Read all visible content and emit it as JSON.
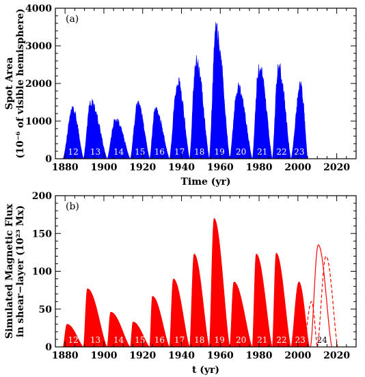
{
  "chart_data": [
    {
      "panel": "(a)",
      "type": "area",
      "xlabel": "Time (yr)",
      "ylabel": [
        "Spot Area",
        "(10⁻⁶ of visible hemisphere)"
      ],
      "xlim": [
        1875,
        2030
      ],
      "ylim": [
        0,
        4000
      ],
      "xticks": [
        1880,
        1900,
        1920,
        1940,
        1960,
        1980,
        2000,
        2020
      ],
      "yticks": [
        0,
        1000,
        2000,
        3000,
        4000
      ],
      "color": "#0000ff",
      "series": [
        {
          "values": [
            {
              "cycle": "12",
              "start": 1878.9,
              "max": 1883.9,
              "end": 1889.5,
              "peak": 1300
            },
            {
              "cycle": "13",
              "start": 1889.5,
              "max": 1893.2,
              "end": 1901.7,
              "peak": 1500
            },
            {
              "cycle": "14",
              "start": 1901.7,
              "max": 1906.0,
              "end": 1913.6,
              "peak": 1050
            },
            {
              "cycle": "15",
              "start": 1913.6,
              "max": 1917.5,
              "end": 1923.6,
              "peak": 1450
            },
            {
              "cycle": "16",
              "start": 1923.6,
              "max": 1926.5,
              "end": 1933.8,
              "peak": 1300
            },
            {
              "cycle": "17",
              "start": 1933.8,
              "max": 1938.0,
              "end": 1944.2,
              "peak": 2050
            },
            {
              "cycle": "18",
              "start": 1944.2,
              "max": 1947.5,
              "end": 1954.3,
              "peak": 2600
            },
            {
              "cycle": "19",
              "start": 1954.3,
              "max": 1957.9,
              "end": 1964.9,
              "peak": 3400
            },
            {
              "cycle": "20",
              "start": 1964.9,
              "max": 1969.0,
              "end": 1976.5,
              "peak": 1900
            },
            {
              "cycle": "21",
              "start": 1976.5,
              "max": 1980.0,
              "end": 1986.8,
              "peak": 2450
            },
            {
              "cycle": "22",
              "start": 1986.8,
              "max": 1990.0,
              "end": 1996.4,
              "peak": 2450
            },
            {
              "cycle": "23",
              "start": 1996.4,
              "max": 2001.5,
              "end": 2005.0,
              "peak": 1950
            }
          ]
        }
      ],
      "cycle_labels": [
        "12",
        "13",
        "14",
        "15",
        "16",
        "17",
        "18",
        "19",
        "20",
        "21",
        "22",
        "23"
      ]
    },
    {
      "panel": "(b)",
      "type": "area",
      "xlabel": "t (yr)",
      "ylabel": [
        "Simulated Magnetic Flux",
        "in shear−layer (10²³ Mx)"
      ],
      "xlim": [
        1875,
        2030
      ],
      "ylim": [
        0,
        200
      ],
      "xticks": [
        1880,
        1900,
        1920,
        1940,
        1960,
        1980,
        2000,
        2020
      ],
      "yticks": [
        0,
        50,
        100,
        150,
        200
      ],
      "color": "#ff0000",
      "series": [
        {
          "name": "simulated",
          "values": [
            {
              "cycle": "12",
              "start": 1878.9,
              "max": 1881.0,
              "end": 1889.5,
              "peak": 30
            },
            {
              "cycle": "13",
              "start": 1889.5,
              "max": 1891.5,
              "end": 1901.7,
              "peak": 77
            },
            {
              "cycle": "14",
              "start": 1901.7,
              "max": 1903.5,
              "end": 1913.6,
              "peak": 46
            },
            {
              "cycle": "15",
              "start": 1913.6,
              "max": 1915.0,
              "end": 1923.6,
              "peak": 33
            },
            {
              "cycle": "16",
              "start": 1923.6,
              "max": 1925.0,
              "end": 1933.8,
              "peak": 67
            },
            {
              "cycle": "17",
              "start": 1933.8,
              "max": 1935.8,
              "end": 1944.2,
              "peak": 90
            },
            {
              "cycle": "18",
              "start": 1944.2,
              "max": 1946.5,
              "end": 1954.3,
              "peak": 123
            },
            {
              "cycle": "19",
              "start": 1954.3,
              "max": 1956.8,
              "end": 1964.9,
              "peak": 170
            },
            {
              "cycle": "20",
              "start": 1964.9,
              "max": 1967.0,
              "end": 1976.5,
              "peak": 86
            },
            {
              "cycle": "21",
              "start": 1976.5,
              "max": 1978.5,
              "end": 1986.8,
              "peak": 123
            },
            {
              "cycle": "22",
              "start": 1986.8,
              "max": 1988.8,
              "end": 1996.4,
              "peak": 124
            },
            {
              "cycle": "23",
              "start": 1996.4,
              "max": 2000.5,
              "end": 2006.0,
              "peak": 86
            }
          ]
        },
        {
          "name": "forecast-solid",
          "style": "solid-line",
          "values": [
            {
              "start": 2006.5,
              "max": 2010.5,
              "end": 2017.5,
              "peak": 135
            }
          ]
        },
        {
          "name": "forecast-dashed",
          "style": "dashed-line",
          "values": [
            {
              "start": 2003.0,
              "max": 2007.0,
              "end": 2010.0,
              "peak": 60
            },
            {
              "start": 2010.0,
              "max": 2014.5,
              "end": 2020.5,
              "peak": 120
            }
          ]
        }
      ],
      "cycle_labels": [
        "12",
        "13",
        "14",
        "15",
        "16",
        "17",
        "18",
        "19",
        "20",
        "21",
        "22",
        "23",
        "24"
      ]
    }
  ]
}
